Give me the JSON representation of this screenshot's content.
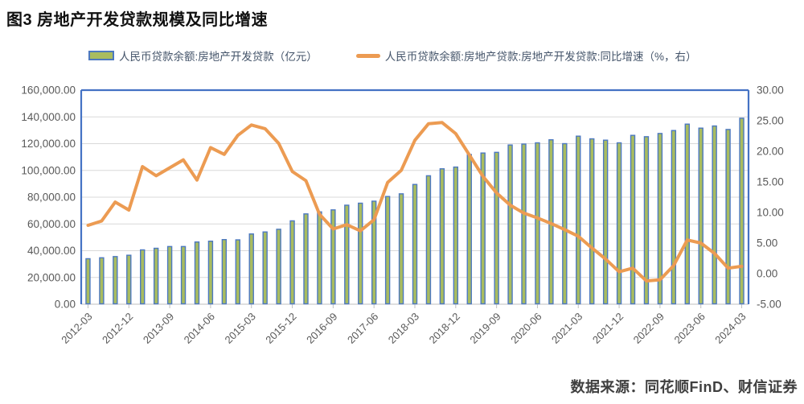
{
  "title": "图3  房地产开发贷款规模及同比增速",
  "legend": {
    "bar_label": "人民币贷款余额:房地产开发贷款（亿元）",
    "line_label": "人民币贷款余额:房地产贷款:房地产开发贷款:同比增速（%，右）"
  },
  "source": "数据来源：同花顺FinD、财信证券",
  "colors": {
    "bar_fill": "#A9BC5F",
    "bar_stroke": "#4D79C0",
    "line": "#EC9B52",
    "grid": "#D9D9D9",
    "plot_border": "#4472C4",
    "axis_text": "#595959",
    "bottom_axis": "#BFBFBF"
  },
  "chart_data": {
    "type": "combo (bar + line, dual axis)",
    "x": [
      "2012-03",
      "2012-06",
      "2012-09",
      "2012-12",
      "2013-03",
      "2013-06",
      "2013-09",
      "2013-12",
      "2014-03",
      "2014-06",
      "2014-09",
      "2014-12",
      "2015-03",
      "2015-06",
      "2015-09",
      "2015-12",
      "2016-03",
      "2016-06",
      "2016-09",
      "2016-12",
      "2017-03",
      "2017-06",
      "2017-09",
      "2017-12",
      "2018-03",
      "2018-06",
      "2018-09",
      "2018-12",
      "2019-03",
      "2019-06",
      "2019-09",
      "2019-12",
      "2020-03",
      "2020-06",
      "2020-09",
      "2020-12",
      "2021-03",
      "2021-06",
      "2021-09",
      "2021-12",
      "2022-03",
      "2022-06",
      "2022-09",
      "2022-12",
      "2023-03",
      "2023-06",
      "2023-09",
      "2023-12",
      "2024-03"
    ],
    "x_tick_every": 3,
    "x_tick_labels": [
      "2012-03",
      "2012-12",
      "2013-09",
      "2014-06",
      "2015-03",
      "2015-12",
      "2016-09",
      "2017-06",
      "2018-03",
      "2018-12",
      "2019-09",
      "2020-06",
      "2021-03",
      "2021-12",
      "2022-09",
      "2023-06",
      "2024-03"
    ],
    "series": [
      {
        "name": "人民币贷款余额:房地产开发贷款（亿元）",
        "type": "bar",
        "axis": "left",
        "values": [
          34000,
          34700,
          35600,
          36600,
          40600,
          41800,
          43100,
          43100,
          46500,
          47100,
          48300,
          48100,
          52500,
          54000,
          56000,
          62300,
          67500,
          69000,
          70500,
          74000,
          75500,
          77000,
          80500,
          82500,
          89500,
          96000,
          101200,
          102500,
          111900,
          113000,
          113500,
          119000,
          119700,
          120600,
          122900,
          120000,
          125600,
          123600,
          122600,
          120600,
          126200,
          125200,
          127600,
          129800,
          134600,
          131600,
          133200,
          130600,
          139000
        ]
      },
      {
        "name": "人民币贷款余额:房地产贷款:房地产开发贷款:同比增速（%，右）",
        "type": "line",
        "axis": "right",
        "values": [
          7.9,
          8.6,
          11.7,
          10.4,
          17.5,
          16.0,
          17.3,
          18.6,
          15.3,
          20.6,
          19.5,
          22.6,
          24.3,
          23.7,
          21.3,
          16.7,
          15.2,
          9.7,
          7.3,
          8.0,
          7.0,
          8.8,
          14.9,
          16.9,
          21.8,
          24.5,
          24.7,
          22.9,
          19.4,
          15.9,
          13.2,
          11.2,
          9.9,
          9.1,
          8.2,
          7.2,
          6.1,
          4.2,
          2.4,
          0.3,
          0.9,
          -1.2,
          -1.0,
          1.3,
          5.5,
          5.0,
          3.3,
          0.9,
          1.2
        ]
      }
    ],
    "left_axis": {
      "min": 0,
      "max": 160000,
      "step": 20000,
      "labels": [
        "0.00",
        "20,000.00",
        "40,000.00",
        "60,000.00",
        "80,000.00",
        "100,000.00",
        "120,000.00",
        "140,000.00",
        "160,000.00"
      ]
    },
    "right_axis": {
      "min": -5,
      "max": 30,
      "step": 5,
      "labels": [
        "-5.00",
        "0.00",
        "5.00",
        "10.00",
        "15.00",
        "20.00",
        "25.00",
        "30.00"
      ]
    },
    "grid": "horizontal, on primary (left) axis steps",
    "legend_position": "top"
  }
}
